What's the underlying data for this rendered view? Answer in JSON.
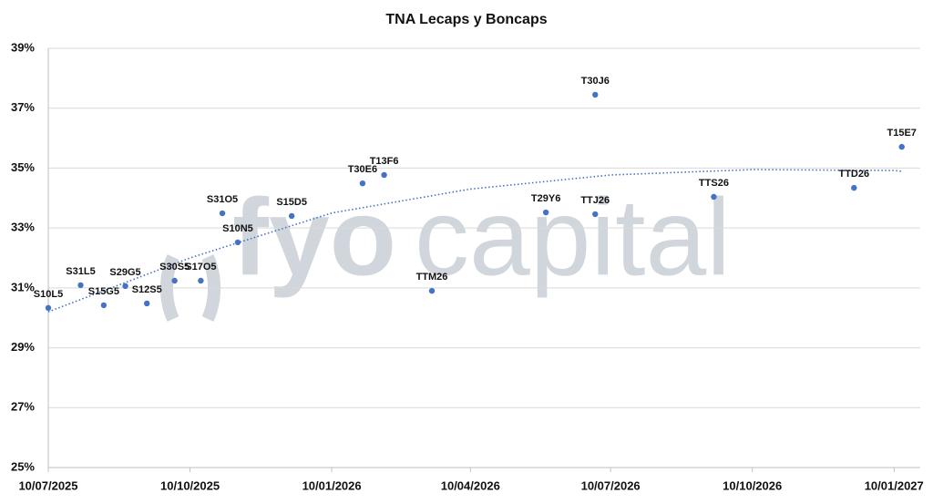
{
  "chart_data": {
    "type": "scatter",
    "title": "TNA Lecaps y Boncaps",
    "x": [
      "10/07/2025",
      "31/07/2025",
      "15/08/2025",
      "29/08/2025",
      "12/09/2025",
      "30/09/2025",
      "17/10/2025",
      "31/10/2025",
      "10/11/2025",
      "15/12/2025",
      "30/01/2026",
      "13/02/2026",
      "16/03/2026",
      "29/05/2026",
      "30/06/2026",
      "30/06/2026",
      "15/09/2026",
      "15/12/2026",
      "15/01/2027"
    ],
    "values": [
      30.33,
      31.09,
      30.42,
      31.06,
      30.48,
      31.24,
      31.24,
      33.49,
      32.52,
      33.4,
      34.49,
      34.77,
      30.9,
      33.52,
      37.45,
      33.46,
      34.04,
      34.34,
      35.71
    ],
    "labels": [
      "S10L5",
      "S31L5",
      "S15G5",
      "S29G5",
      "S12S5",
      "S30S5",
      "S17O5",
      "S31O5",
      "S10N5",
      "S15D5",
      "T30E6",
      "T13F6",
      "TTM26",
      "T29Y6",
      "T30J6",
      "TTJ26",
      "TTS26",
      "TTD26",
      "T15E7"
    ],
    "color": "#4472c4",
    "trend": {
      "x": [
        "10/07/2025",
        "10/10/2025",
        "10/01/2026",
        "10/04/2026",
        "10/07/2026",
        "10/10/2026",
        "10/01/2027",
        "15/01/2027"
      ],
      "values": [
        30.2,
        32.0,
        33.5,
        34.3,
        34.77,
        34.95,
        34.92,
        34.89
      ],
      "style": "dotted"
    },
    "xlim": [
      "10/07/2025",
      "27/01/2027"
    ],
    "xticks": [
      "10/07/2025",
      "10/10/2025",
      "10/01/2026",
      "10/04/2026",
      "10/07/2026",
      "10/10/2026",
      "10/01/2027"
    ],
    "ylim": [
      25,
      39
    ],
    "yticks": [
      {
        "value": 25,
        "label": "25%"
      },
      {
        "value": 27,
        "label": "27%"
      },
      {
        "value": 29,
        "label": "29%"
      },
      {
        "value": 31,
        "label": "31%"
      },
      {
        "value": 33,
        "label": "33%"
      },
      {
        "value": 35,
        "label": "35%"
      },
      {
        "value": 37,
        "label": "37%"
      },
      {
        "value": 39,
        "label": "39%"
      }
    ],
    "grid": true,
    "watermark": {
      "bold": "fyo",
      "light": "capital"
    }
  }
}
